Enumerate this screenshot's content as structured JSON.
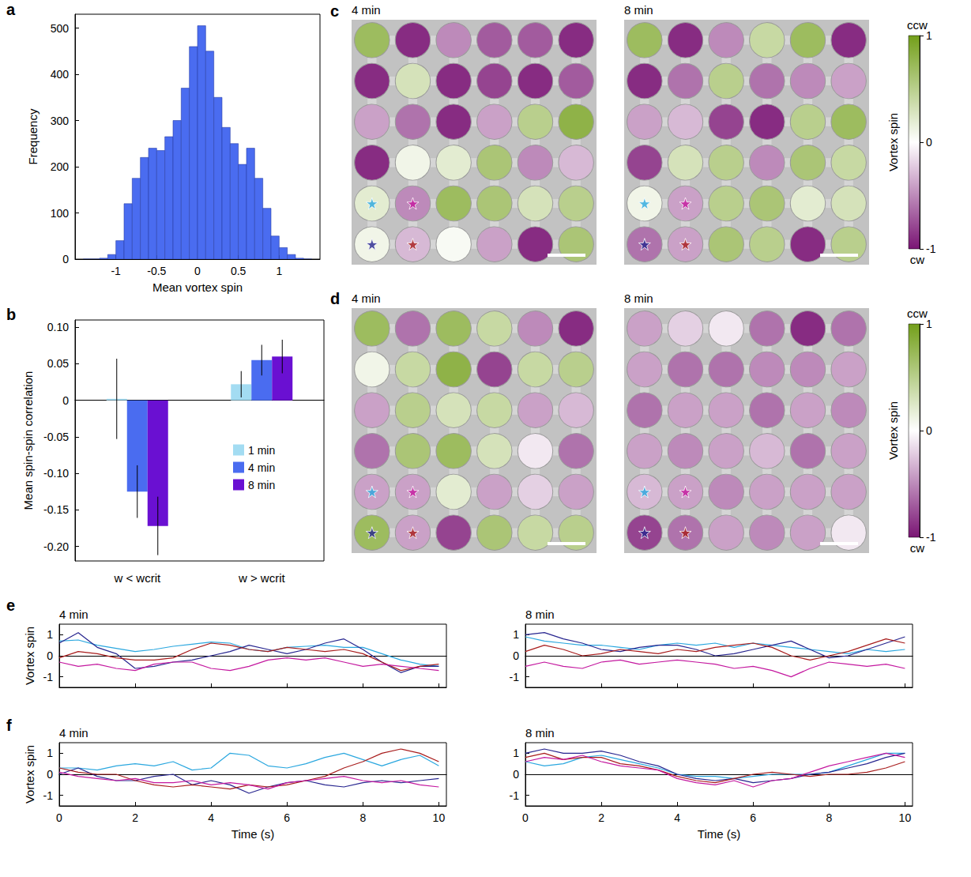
{
  "chart_data": [
    {
      "type": "histogram",
      "panel": "a",
      "x_label": "Mean vortex spin",
      "y_label": "Frequency",
      "bins": [
        -1.4,
        -1.3,
        -1.2,
        -1.1,
        -1.0,
        -0.9,
        -0.8,
        -0.7,
        -0.6,
        -0.5,
        -0.4,
        -0.3,
        -0.2,
        -0.1,
        0,
        0.1,
        0.2,
        0.3,
        0.4,
        0.5,
        0.6,
        0.7,
        0.8,
        0.9,
        1.0,
        1.1,
        1.2,
        1.3,
        1.4
      ],
      "counts": [
        0,
        0,
        2,
        10,
        40,
        120,
        175,
        220,
        240,
        235,
        265,
        300,
        370,
        460,
        505,
        450,
        350,
        285,
        250,
        205,
        240,
        175,
        110,
        50,
        25,
        10,
        2,
        0
      ],
      "color": "#4a6cf0",
      "xlim": [
        -1.5,
        1.5
      ],
      "xticks": [
        -1,
        -0.5,
        0,
        0.5,
        1
      ],
      "ylim": [
        0,
        530
      ],
      "yticks": [
        0,
        100,
        200,
        300,
        400,
        500
      ]
    },
    {
      "type": "bar",
      "panel": "b",
      "y_label": "Mean spin-spin correlation",
      "categories": [
        "w < wcrit",
        "w > wcrit"
      ],
      "series": [
        {
          "name": "1 min",
          "color": "#a3dcf2",
          "values": [
            0.002,
            0.022
          ],
          "errors": [
            0.055,
            0.018
          ]
        },
        {
          "name": "4 min",
          "color": "#4a6cf0",
          "values": [
            -0.125,
            0.055
          ],
          "errors": [
            0.036,
            0.021
          ]
        },
        {
          "name": "8 min",
          "color": "#6a10d2",
          "values": [
            -0.172,
            0.06
          ],
          "errors": [
            0.04,
            0.023
          ]
        }
      ],
      "ylim": [
        -0.22,
        0.11
      ],
      "yticks": [
        {
          "value": 0.1,
          "label": "0.10"
        },
        0.05,
        0,
        -0.05,
        {
          "value": -0.1,
          "label": "-0.10"
        },
        -0.15,
        {
          "value": -0.2,
          "label": "-0.20"
        }
      ],
      "legend": "right"
    },
    {
      "type": "heatmap",
      "panel": "c",
      "subtitle": "4 min",
      "tick_labels": false,
      "values": [
        [
          0.7,
          -0.9,
          -0.5,
          -0.7,
          -0.7,
          -0.9
        ],
        [
          -0.9,
          0.3,
          -0.9,
          -0.8,
          -0.9,
          -0.7
        ],
        [
          -0.4,
          -0.6,
          -0.9,
          -0.4,
          0.5,
          0.8
        ],
        [
          -0.9,
          0.1,
          0.2,
          0.6,
          -0.5,
          -0.3
        ],
        [
          0.2,
          -0.5,
          0.7,
          0.6,
          0.3,
          0.5
        ],
        [
          0.1,
          -0.3,
          0.05,
          -0.4,
          -0.9,
          0.6
        ]
      ],
      "markers": [
        {
          "row": 5,
          "col": 1,
          "color": "#2aa7df"
        },
        {
          "row": 5,
          "col": 2,
          "color": "#c4189f"
        },
        {
          "row": 6,
          "col": 1,
          "color": "#27258f"
        },
        {
          "row": 6,
          "col": 2,
          "color": "#a81c1c"
        }
      ]
    },
    {
      "type": "heatmap",
      "subtitle": "8 min",
      "tick_labels": false,
      "values": [
        [
          0.7,
          -0.9,
          -0.5,
          0.4,
          0.7,
          -0.9
        ],
        [
          -0.9,
          -0.6,
          0.5,
          -0.6,
          -0.5,
          -0.4
        ],
        [
          -0.4,
          -0.3,
          -0.8,
          -0.9,
          0.5,
          0.7
        ],
        [
          -0.8,
          0.3,
          0.5,
          -0.5,
          0.6,
          0.4
        ],
        [
          0.1,
          -0.4,
          0.5,
          0.6,
          0.2,
          0.3
        ],
        [
          -0.6,
          -0.4,
          0.6,
          0.5,
          -0.9,
          0.5
        ]
      ],
      "markers": [
        {
          "row": 5,
          "col": 1,
          "color": "#2aa7df"
        },
        {
          "row": 5,
          "col": 2,
          "color": "#c4189f"
        },
        {
          "row": 6,
          "col": 1,
          "color": "#27258f"
        },
        {
          "row": 6,
          "col": 2,
          "color": "#a81c1c"
        }
      ],
      "colorbar": {
        "label": "Vortex spin",
        "range": [
          -1,
          1
        ],
        "ticks": [
          1,
          0,
          -1
        ],
        "top_label": "ccw",
        "bottom_label": "cw"
      }
    },
    {
      "type": "heatmap",
      "panel": "d",
      "subtitle": "4 min",
      "tick_labels": false,
      "values": [
        [
          0.7,
          -0.6,
          0.7,
          0.4,
          -0.5,
          -0.9
        ],
        [
          0.1,
          0.4,
          0.8,
          -0.8,
          0.4,
          0.5
        ],
        [
          -0.4,
          0.5,
          0.3,
          0.4,
          -0.4,
          -0.3
        ],
        [
          -0.6,
          0.6,
          0.7,
          0.3,
          -0.1,
          -0.6
        ],
        [
          -0.4,
          -0.4,
          0.2,
          -0.4,
          -0.2,
          -0.4
        ],
        [
          0.7,
          -0.4,
          -0.8,
          0.6,
          0.4,
          0.5
        ]
      ],
      "markers": [
        {
          "row": 5,
          "col": 1,
          "color": "#2aa7df"
        },
        {
          "row": 5,
          "col": 2,
          "color": "#c4189f"
        },
        {
          "row": 6,
          "col": 1,
          "color": "#27258f"
        },
        {
          "row": 6,
          "col": 2,
          "color": "#a81c1c"
        }
      ]
    },
    {
      "type": "heatmap",
      "subtitle": "8 min",
      "tick_labels": false,
      "values": [
        [
          -0.4,
          -0.2,
          -0.1,
          -0.6,
          -0.9,
          -0.6
        ],
        [
          -0.4,
          -0.6,
          -0.6,
          -0.5,
          -0.5,
          -0.4
        ],
        [
          -0.6,
          -0.4,
          -0.4,
          -0.6,
          -0.4,
          -0.5
        ],
        [
          -0.4,
          -0.5,
          -0.4,
          -0.3,
          -0.6,
          -0.4
        ],
        [
          -0.3,
          -0.4,
          -0.5,
          -0.4,
          -0.4,
          -0.4
        ],
        [
          -0.8,
          -0.6,
          -0.4,
          -0.5,
          -0.4,
          -0.1
        ]
      ],
      "markers": [
        {
          "row": 5,
          "col": 1,
          "color": "#2aa7df"
        },
        {
          "row": 5,
          "col": 2,
          "color": "#c4189f"
        },
        {
          "row": 6,
          "col": 1,
          "color": "#27258f"
        },
        {
          "row": 6,
          "col": 2,
          "color": "#a81c1c"
        }
      ],
      "colorbar": {
        "label": "Vortex spin",
        "range": [
          -1,
          1
        ],
        "ticks": [
          1,
          0,
          -1
        ],
        "top_label": "ccw",
        "bottom_label": "cw"
      }
    },
    {
      "type": "line",
      "panel": "e",
      "subtitle": "4 min",
      "y_label": "Vortex spin",
      "tick_labels": "y",
      "x": [
        0,
        0.5,
        1,
        1.5,
        2,
        2.5,
        3,
        3.5,
        4,
        4.5,
        5,
        5.5,
        6,
        6.5,
        7,
        7.5,
        8,
        8.5,
        9,
        9.5,
        10
      ],
      "xlim": [
        0,
        10.2
      ],
      "xticks": [
        0,
        2,
        4,
        6,
        8,
        10
      ],
      "ylim": [
        -1.5,
        1.5
      ],
      "yticks": [
        -1,
        0,
        1
      ],
      "series": [
        {
          "color": "#2aa7df",
          "values": [
            0.7,
            0.75,
            0.5,
            0.35,
            0.2,
            0.3,
            0.45,
            0.55,
            0.65,
            0.6,
            0.3,
            0.2,
            0.4,
            0.45,
            0.5,
            0.4,
            0.4,
            0.1,
            -0.2,
            -0.4,
            -0.5
          ]
        },
        {
          "color": "#27258f",
          "values": [
            0.6,
            1.1,
            0.4,
            0.1,
            -0.6,
            -0.5,
            -0.3,
            -0.2,
            0,
            0.2,
            0.5,
            0.3,
            0.1,
            0.3,
            0.6,
            0.8,
            0.3,
            -0.3,
            -0.8,
            -0.5,
            -0.5
          ]
        },
        {
          "color": "#a81c1c",
          "values": [
            -0.1,
            0.2,
            0.1,
            -0.1,
            -0.2,
            -0.2,
            -0.1,
            0.3,
            0.6,
            0.5,
            0.3,
            0.2,
            0.4,
            0.3,
            0.2,
            0.3,
            0.1,
            -0.3,
            -0.7,
            -0.5,
            -0.4
          ]
        },
        {
          "color": "#c4189f",
          "values": [
            -0.3,
            -0.5,
            -0.4,
            -0.6,
            -0.7,
            -0.4,
            -0.3,
            -0.3,
            -0.6,
            -0.7,
            -0.5,
            -0.2,
            -0.1,
            -0.2,
            -0.1,
            -0.3,
            -0.5,
            -0.4,
            -0.5,
            -0.6,
            -0.7
          ]
        }
      ]
    },
    {
      "type": "line",
      "subtitle": "8 min",
      "tick_labels": "y",
      "x": [
        0,
        0.5,
        1,
        1.5,
        2,
        2.5,
        3,
        3.5,
        4,
        4.5,
        5,
        5.5,
        6,
        6.5,
        7,
        7.5,
        8,
        8.5,
        9,
        9.5,
        10
      ],
      "xlim": [
        0,
        10.2
      ],
      "xticks": [
        0,
        2,
        4,
        6,
        8,
        10
      ],
      "ylim": [
        -1.5,
        1.5
      ],
      "yticks": [
        -1,
        0,
        1
      ],
      "series": [
        {
          "color": "#2aa7df",
          "values": [
            0.9,
            0.7,
            0.6,
            0.5,
            0.5,
            0.4,
            0.3,
            0.5,
            0.6,
            0.5,
            0.6,
            0.4,
            0.6,
            0.5,
            0.4,
            0.3,
            0.2,
            0.1,
            0.3,
            0.2,
            0.3
          ]
        },
        {
          "color": "#27258f",
          "values": [
            1.0,
            1.1,
            0.8,
            0.6,
            0.3,
            0.2,
            0.4,
            0.5,
            0.5,
            0.3,
            0,
            0.1,
            0.3,
            0.5,
            0.7,
            0.3,
            -0.1,
            0,
            0.3,
            0.6,
            0.9
          ]
        },
        {
          "color": "#a81c1c",
          "values": [
            0.2,
            0.5,
            0.3,
            0,
            0.1,
            0.3,
            0.2,
            0.1,
            0.3,
            0.2,
            0.4,
            0.5,
            0.6,
            0.4,
            0,
            -0.2,
            0,
            0.2,
            0.5,
            0.8,
            0.6
          ]
        },
        {
          "color": "#c4189f",
          "values": [
            -0.5,
            -0.3,
            -0.5,
            -0.6,
            -0.3,
            -0.2,
            -0.4,
            -0.3,
            -0.2,
            -0.3,
            -0.4,
            -0.6,
            -0.5,
            -0.7,
            -1.0,
            -0.6,
            -0.3,
            -0.4,
            -0.5,
            -0.4,
            -0.6
          ]
        }
      ]
    },
    {
      "type": "line",
      "panel": "f",
      "subtitle": "4 min",
      "x_label": "Time (s)",
      "y_label": "Vortex spin",
      "x": [
        0,
        0.5,
        1,
        1.5,
        2,
        2.5,
        3,
        3.5,
        4,
        4.5,
        5,
        5.5,
        6,
        6.5,
        7,
        7.5,
        8,
        8.5,
        9,
        9.5,
        10
      ],
      "xlim": [
        0,
        10.2
      ],
      "xticks": [
        0,
        2,
        4,
        6,
        8,
        10
      ],
      "ylim": [
        -1.5,
        1.5
      ],
      "yticks": [
        -1,
        0,
        1
      ],
      "series": [
        {
          "color": "#2aa7df",
          "values": [
            0.3,
            0.3,
            0.2,
            0.4,
            0.5,
            0.4,
            0.6,
            0.2,
            0.3,
            1.0,
            0.9,
            0.4,
            0.3,
            0.5,
            0.8,
            1.0,
            0.7,
            0.4,
            0.7,
            0.9,
            0.4
          ]
        },
        {
          "color": "#27258f",
          "values": [
            0,
            0.3,
            -0.1,
            -0.3,
            -0.3,
            -0.1,
            0,
            -0.5,
            -0.3,
            -0.5,
            -0.9,
            -0.6,
            -0.4,
            -0.3,
            -0.5,
            -0.6,
            -0.4,
            -0.3,
            -0.4,
            -0.3,
            -0.2
          ]
        },
        {
          "color": "#a81c1c",
          "values": [
            0.3,
            0.1,
            0,
            0,
            -0.3,
            -0.5,
            -0.6,
            -0.5,
            -0.6,
            -0.7,
            -0.5,
            -0.6,
            -0.5,
            -0.3,
            -0.1,
            0.3,
            0.6,
            1.0,
            1.2,
            1.0,
            0.6
          ]
        },
        {
          "color": "#c4189f",
          "values": [
            0.1,
            -0.1,
            -0.2,
            -0.3,
            -0.2,
            -0.4,
            -0.4,
            -0.3,
            -0.5,
            -0.4,
            -0.5,
            -0.7,
            -0.4,
            -0.3,
            -0.2,
            -0.1,
            -0.3,
            -0.4,
            -0.3,
            -0.5,
            -0.6
          ]
        }
      ]
    },
    {
      "type": "line",
      "subtitle": "8 min",
      "x_label": "Time (s)",
      "x": [
        0,
        0.5,
        1,
        1.5,
        2,
        2.5,
        3,
        3.5,
        4,
        4.5,
        5,
        5.5,
        6,
        6.5,
        7,
        7.5,
        8,
        8.5,
        9,
        9.5,
        10
      ],
      "xlim": [
        0,
        10.2
      ],
      "xticks": [
        0,
        2,
        4,
        6,
        8,
        10
      ],
      "ylim": [
        -1.5,
        1.5
      ],
      "yticks": [
        -1,
        0,
        1
      ],
      "series": [
        {
          "color": "#2aa7df",
          "values": [
            0.6,
            0.4,
            0.5,
            0.8,
            0.9,
            0.7,
            0.5,
            0.3,
            0,
            -0.1,
            -0.1,
            -0.2,
            -0.1,
            0,
            0,
            0,
            0.1,
            0.4,
            0.7,
            1.0,
            1.0
          ]
        },
        {
          "color": "#27258f",
          "values": [
            1.0,
            1.2,
            1.0,
            1.0,
            1.1,
            0.9,
            0.6,
            0.4,
            0,
            -0.2,
            -0.3,
            -0.2,
            -0.4,
            -0.3,
            -0.2,
            0,
            0.1,
            0.3,
            0.5,
            0.8,
            1.0
          ]
        },
        {
          "color": "#a81c1c",
          "values": [
            0.8,
            1.0,
            0.7,
            0.8,
            0.8,
            0.5,
            0.4,
            0.2,
            -0.1,
            -0.3,
            -0.4,
            -0.2,
            0,
            0.1,
            0,
            -0.1,
            0,
            0,
            0.1,
            0.3,
            0.6
          ]
        },
        {
          "color": "#c4189f",
          "values": [
            0.6,
            0.8,
            0.7,
            0.9,
            0.6,
            0.4,
            0.3,
            0.2,
            -0.2,
            -0.4,
            -0.5,
            -0.3,
            -0.6,
            -0.3,
            -0.2,
            0.1,
            0.4,
            0.6,
            0.8,
            1.0,
            0.8
          ]
        }
      ]
    }
  ]
}
